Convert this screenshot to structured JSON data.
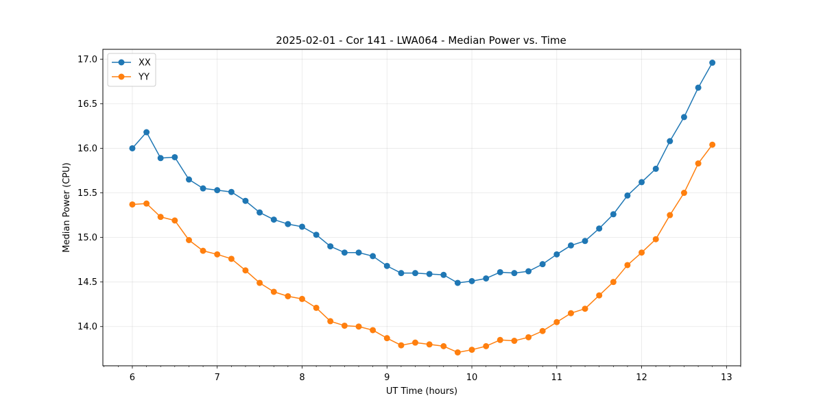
{
  "chart_data": {
    "type": "line",
    "title": "2025-02-01 - Cor 141 - LWA064 - Median Power vs. Time",
    "xlabel": "UT Time (hours)",
    "ylabel": "Median Power (CPU)",
    "xlim": [
      5.653,
      13.167
    ],
    "ylim": [
      13.56,
      17.11
    ],
    "xticks": [
      6,
      7,
      8,
      9,
      10,
      11,
      12,
      13
    ],
    "yticks": [
      14.0,
      14.5,
      15.0,
      15.5,
      16.0,
      16.5,
      17.0
    ],
    "ytick_labels": [
      "14.0",
      "14.5",
      "15.0",
      "15.5",
      "16.0",
      "16.5",
      "17.0"
    ],
    "grid": true,
    "legend_position": "top-left",
    "x": [
      6.0,
      6.167,
      6.333,
      6.5,
      6.667,
      6.833,
      7.0,
      7.167,
      7.333,
      7.5,
      7.667,
      7.833,
      8.0,
      8.167,
      8.333,
      8.5,
      8.667,
      8.833,
      9.0,
      9.167,
      9.333,
      9.5,
      9.667,
      9.833,
      10.0,
      10.167,
      10.333,
      10.5,
      10.667,
      10.833,
      11.0,
      11.167,
      11.333,
      11.5,
      11.667,
      11.833,
      12.0,
      12.167,
      12.333,
      12.5,
      12.667,
      12.833
    ],
    "series": [
      {
        "name": "XX",
        "color": "#1f77b4",
        "values": [
          16.0,
          16.18,
          15.89,
          15.9,
          15.65,
          15.55,
          15.53,
          15.51,
          15.41,
          15.28,
          15.2,
          15.15,
          15.12,
          15.03,
          14.9,
          14.83,
          14.83,
          14.79,
          14.68,
          14.6,
          14.6,
          14.59,
          14.58,
          14.49,
          14.51,
          14.54,
          14.61,
          14.6,
          14.62,
          14.7,
          14.81,
          14.91,
          14.96,
          15.1,
          15.26,
          15.47,
          15.62,
          15.77,
          16.08,
          16.35,
          16.68,
          16.96
        ]
      },
      {
        "name": "YY",
        "color": "#ff7f0e",
        "values": [
          15.37,
          15.38,
          15.23,
          15.19,
          14.97,
          14.85,
          14.81,
          14.76,
          14.63,
          14.49,
          14.39,
          14.34,
          14.31,
          14.21,
          14.06,
          14.01,
          14.0,
          13.96,
          13.87,
          13.79,
          13.82,
          13.8,
          13.78,
          13.71,
          13.74,
          13.78,
          13.85,
          13.84,
          13.88,
          13.95,
          14.05,
          14.15,
          14.2,
          14.35,
          14.5,
          14.69,
          14.83,
          14.98,
          15.25,
          15.5,
          15.83,
          16.04
        ]
      }
    ]
  }
}
